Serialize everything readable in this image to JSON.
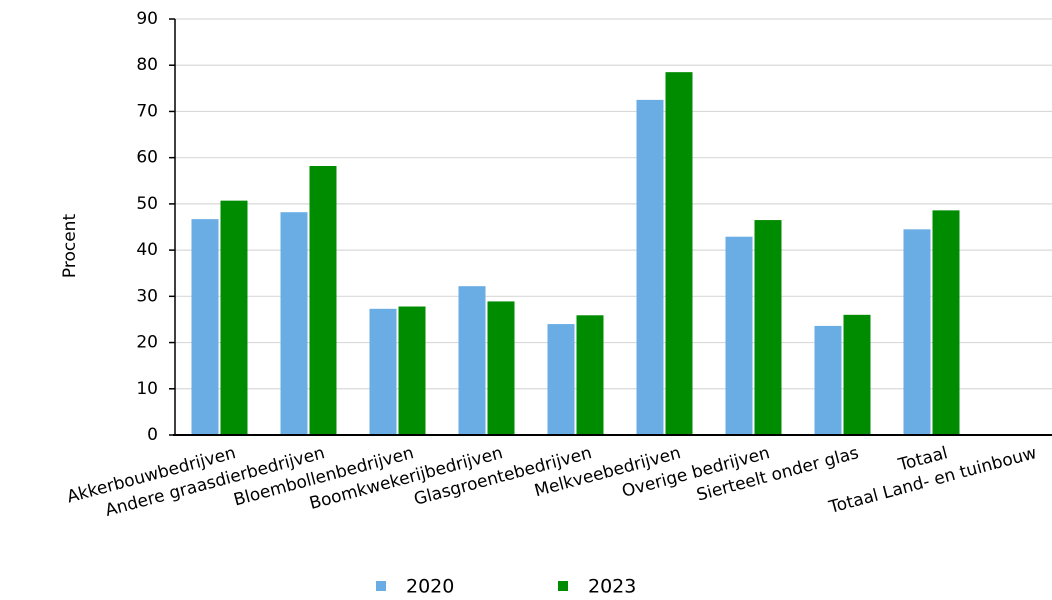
{
  "chart_data": {
    "type": "bar",
    "ylabel": "Procent",
    "xlabel": "",
    "ylim": [
      0,
      90
    ],
    "yticks": [
      0,
      10,
      20,
      30,
      40,
      50,
      60,
      70,
      80,
      90
    ],
    "grid": true,
    "legend_position": "bottom",
    "categories": [
      "Akkerbouwbedrijven",
      "Andere graasdierbedrijven",
      "Bloembollenbedrijven",
      "Boomkwekerijbedrijven",
      "Glasgroentebedrijven",
      "Melkveebedrijven",
      "Overige bedrijven",
      "Sierteelt onder glas",
      "Totaal",
      "Totaal Land- en tuinbouw"
    ],
    "series": [
      {
        "name": "2020",
        "color": "#6aade4",
        "values": [
          46.7,
          48.2,
          27.3,
          32.2,
          24.0,
          72.5,
          42.9,
          23.6,
          44.5,
          null
        ]
      },
      {
        "name": "2023",
        "color": "#008c00",
        "values": [
          50.7,
          58.2,
          27.8,
          28.9,
          25.9,
          78.5,
          46.5,
          26.0,
          48.6,
          null
        ]
      }
    ]
  }
}
